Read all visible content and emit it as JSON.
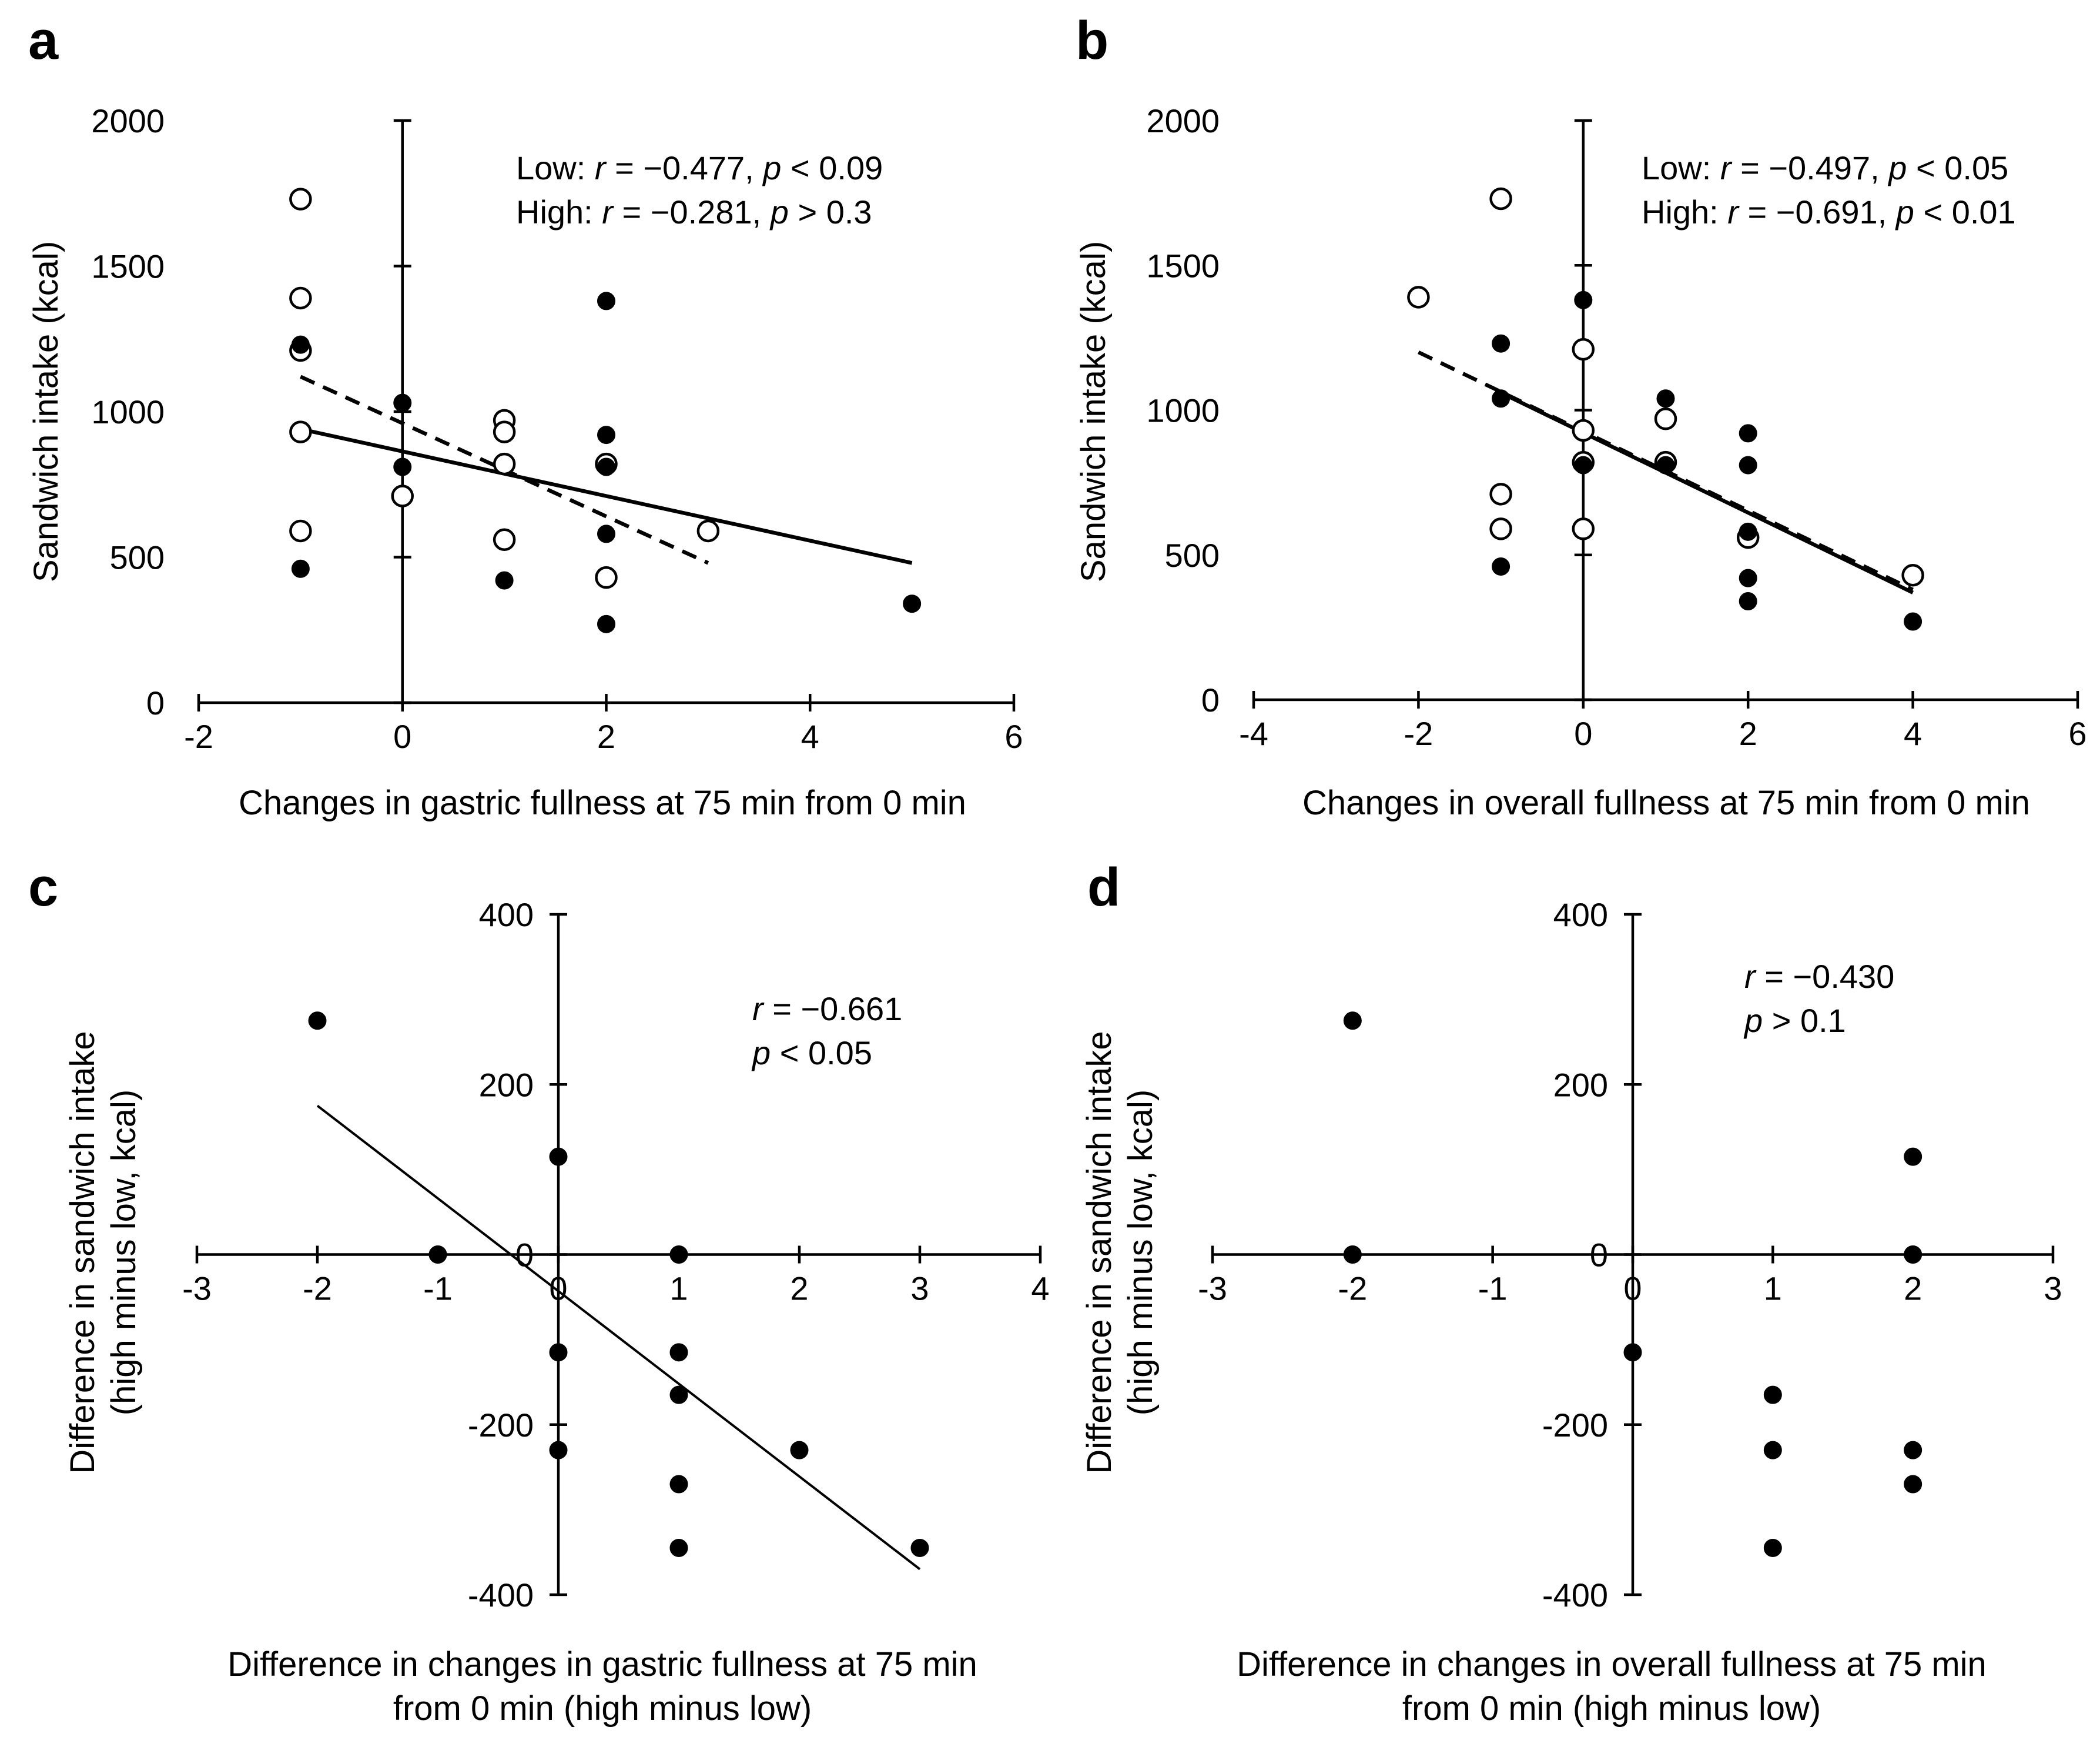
{
  "chart_data": [
    {
      "id": "a",
      "panel_label": "a",
      "type": "scatter",
      "xlabel": "Changes in gastric fullness at 75 min  from 0 min",
      "ylabel": "Sandwich intake (kcal)",
      "xlim": [
        -2,
        6
      ],
      "ylim": [
        0,
        2000
      ],
      "xticks": [
        -2,
        0,
        2,
        4,
        6
      ],
      "yticks": [
        0,
        500,
        1000,
        1500,
        2000
      ],
      "annotation_lines": [
        [
          {
            "t": "Low: ",
            "i": false
          },
          {
            "t": "r",
            "i": true
          },
          {
            "t": " = −0.477, ",
            "i": false
          },
          {
            "t": "p",
            "i": true
          },
          {
            "t": " < 0.09",
            "i": false
          }
        ],
        [
          {
            "t": "High: ",
            "i": false
          },
          {
            "t": "r",
            "i": true
          },
          {
            "t": " = −0.281, ",
            "i": false
          },
          {
            "t": "p",
            "i": true
          },
          {
            "t": " > 0.3",
            "i": false
          }
        ]
      ],
      "series": [
        {
          "name": "Low",
          "marker": "open",
          "points": [
            [
              -1,
              1730
            ],
            [
              -1,
              1390
            ],
            [
              -1,
              1210
            ],
            [
              -1,
              930
            ],
            [
              -1,
              590
            ],
            [
              0,
              710
            ],
            [
              1,
              970
            ],
            [
              1,
              930
            ],
            [
              1,
              820
            ],
            [
              1,
              560
            ],
            [
              2,
              820
            ],
            [
              2,
              430
            ],
            [
              3,
              590
            ]
          ]
        },
        {
          "name": "High",
          "marker": "filled",
          "points": [
            [
              -1,
              1230
            ],
            [
              -1,
              460
            ],
            [
              0,
              1030
            ],
            [
              0,
              810
            ],
            [
              1,
              420
            ],
            [
              2,
              1380
            ],
            [
              2,
              920
            ],
            [
              2,
              810
            ],
            [
              2,
              580
            ],
            [
              2,
              270
            ],
            [
              5,
              340
            ]
          ]
        }
      ],
      "regressions": [
        {
          "name": "Low",
          "style": "dashed",
          "x": [
            -1,
            3
          ],
          "y": [
            1120,
            480
          ]
        },
        {
          "name": "High",
          "style": "solid",
          "x": [
            -1,
            5
          ],
          "y": [
            940,
            480
          ]
        }
      ]
    },
    {
      "id": "b",
      "panel_label": "b",
      "type": "scatter",
      "xlabel": "Changes in overall fullness at 75 min  from 0 min",
      "ylabel": "Sandwich intake (kcal)",
      "xlim": [
        -4,
        6
      ],
      "ylim": [
        0,
        2000
      ],
      "xticks": [
        -4,
        -2,
        0,
        2,
        4,
        6
      ],
      "yticks": [
        0,
        500,
        1000,
        1500,
        2000
      ],
      "annotation_lines": [
        [
          {
            "t": "Low: ",
            "i": false
          },
          {
            "t": "r",
            "i": true
          },
          {
            "t": " = −0.497, ",
            "i": false
          },
          {
            "t": "p",
            "i": true
          },
          {
            "t": " < 0.05",
            "i": false
          }
        ],
        [
          {
            "t": "High: ",
            "i": false
          },
          {
            "t": "r",
            "i": true
          },
          {
            "t": " = −0.691, ",
            "i": false
          },
          {
            "t": "p",
            "i": true
          },
          {
            "t": " < 0.01",
            "i": false
          }
        ]
      ],
      "series": [
        {
          "name": "Low",
          "marker": "open",
          "points": [
            [
              -2,
              1390
            ],
            [
              -1,
              1730
            ],
            [
              -1,
              710
            ],
            [
              -1,
              590
            ],
            [
              0,
              1210
            ],
            [
              0,
              930
            ],
            [
              0,
              820
            ],
            [
              0,
              590
            ],
            [
              1,
              970
            ],
            [
              1,
              820
            ],
            [
              2,
              560
            ],
            [
              4,
              430
            ]
          ]
        },
        {
          "name": "High",
          "marker": "filled",
          "points": [
            [
              -1,
              1230
            ],
            [
              -1,
              1040
            ],
            [
              -1,
              460
            ],
            [
              0,
              1380
            ],
            [
              0,
              810
            ],
            [
              1,
              1040
            ],
            [
              1,
              810
            ],
            [
              2,
              920
            ],
            [
              2,
              810
            ],
            [
              2,
              580
            ],
            [
              2,
              420
            ],
            [
              2,
              340
            ],
            [
              4,
              270
            ]
          ]
        }
      ],
      "regressions": [
        {
          "name": "Low",
          "style": "dashed",
          "x": [
            -2,
            4
          ],
          "y": [
            1200,
            380
          ]
        },
        {
          "name": "High",
          "style": "solid",
          "x": [
            -1,
            4
          ],
          "y": [
            1060,
            370
          ]
        }
      ]
    },
    {
      "id": "c",
      "panel_label": "c",
      "type": "scatter",
      "xlabel_lines": [
        "Difference in changes in gastric fullness at 75 min",
        "from 0 min (high minus low)"
      ],
      "ylabel_lines": [
        "Difference in sandwich intake",
        "(high minus low, kcal)"
      ],
      "xlim": [
        -3,
        4
      ],
      "ylim": [
        -400,
        400
      ],
      "xticks": [
        -3,
        -2,
        -1,
        0,
        1,
        2,
        3,
        4
      ],
      "yticks": [
        -400,
        -200,
        0,
        200,
        400
      ],
      "annotation_lines": [
        [
          {
            "t": "r",
            "i": true
          },
          {
            "t": " = −0.661",
            "i": false
          }
        ],
        [
          {
            "t": "p",
            "i": true
          },
          {
            "t": " < 0.05",
            "i": false
          }
        ]
      ],
      "series": [
        {
          "name": "Difference",
          "marker": "filled",
          "points": [
            [
              -2,
              275
            ],
            [
              -1,
              0
            ],
            [
              0,
              115
            ],
            [
              0,
              -115
            ],
            [
              0,
              -230
            ],
            [
              1,
              0
            ],
            [
              1,
              -115
            ],
            [
              1,
              -165
            ],
            [
              1,
              -270
            ],
            [
              1,
              -345
            ],
            [
              2,
              -230
            ],
            [
              3,
              -345
            ]
          ]
        }
      ],
      "regressions": [
        {
          "name": "Fit",
          "style": "thin",
          "x": [
            -2,
            3
          ],
          "y": [
            175,
            -370
          ]
        }
      ]
    },
    {
      "id": "d",
      "panel_label": "d",
      "type": "scatter",
      "xlabel_lines": [
        "Difference in changes in overall fullness at 75 min",
        "from 0 min (high minus low)"
      ],
      "ylabel_lines": [
        "Difference in sandwich intake",
        "(high minus low, kcal)"
      ],
      "xlim": [
        -3,
        3
      ],
      "ylim": [
        -400,
        400
      ],
      "xticks": [
        -3,
        -2,
        -1,
        0,
        1,
        2,
        3
      ],
      "yticks": [
        -400,
        -200,
        0,
        200,
        400
      ],
      "annotation_lines": [
        [
          {
            "t": "r",
            "i": true
          },
          {
            "t": " = −0.430",
            "i": false
          }
        ],
        [
          {
            "t": "p",
            "i": true
          },
          {
            "t": " > 0.1",
            "i": false
          }
        ]
      ],
      "series": [
        {
          "name": "Difference",
          "marker": "filled",
          "points": [
            [
              -2,
              275
            ],
            [
              -2,
              0
            ],
            [
              0,
              -115
            ],
            [
              1,
              -165
            ],
            [
              1,
              -230
            ],
            [
              1,
              -345
            ],
            [
              2,
              115
            ],
            [
              2,
              0
            ],
            [
              2,
              -230
            ],
            [
              2,
              -270
            ]
          ]
        }
      ],
      "regressions": []
    }
  ]
}
